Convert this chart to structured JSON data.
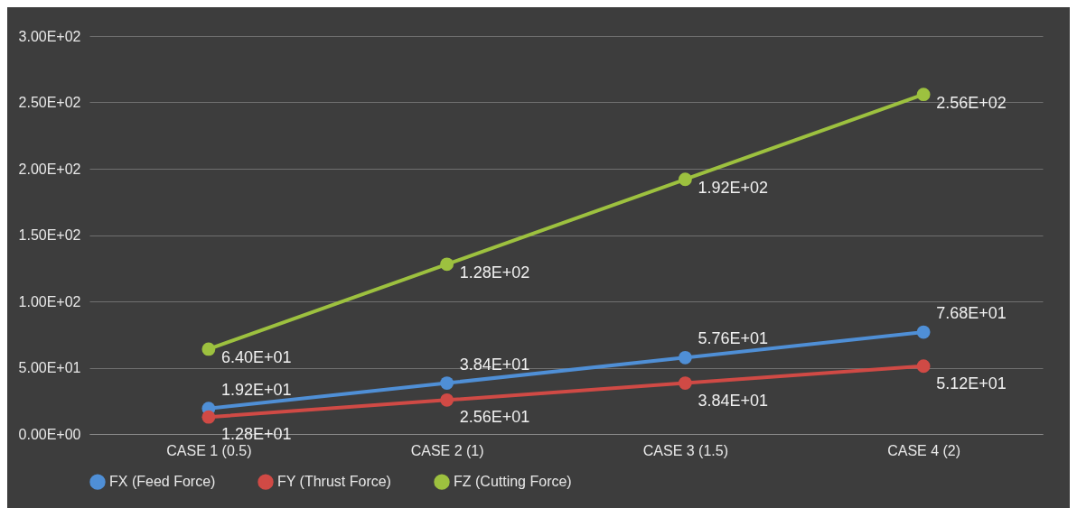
{
  "chart_data": {
    "type": "line",
    "categories": [
      "CASE 1 (0.5)",
      "CASE 2 (1)",
      "CASE 3 (1.5)",
      "CASE 4 (2)"
    ],
    "series": [
      {
        "name": "FX (Feed Force)",
        "color": "#4f8fd6",
        "values": [
          19.2,
          38.4,
          57.6,
          76.8
        ],
        "value_labels": [
          "1.92E+01",
          "3.84E+01",
          "5.76E+01",
          "7.68E+01"
        ]
      },
      {
        "name": "FY (Thrust Force)",
        "color": "#d04a45",
        "values": [
          12.8,
          25.6,
          38.4,
          51.2
        ],
        "value_labels": [
          "1.28E+01",
          "2.56E+01",
          "3.84E+01",
          "5.12E+01"
        ]
      },
      {
        "name": "FZ (Cutting Force)",
        "color": "#9dc13f",
        "values": [
          64,
          128,
          192,
          256
        ],
        "value_labels": [
          "6.40E+01",
          "1.28E+02",
          "1.92E+02",
          "2.56E+02"
        ]
      }
    ],
    "ylim": [
      0,
      300
    ],
    "yticks": [
      {
        "value": 0,
        "label": "0.00E+00"
      },
      {
        "value": 50,
        "label": "5.00E+01"
      },
      {
        "value": 100,
        "label": "1.00E+02"
      },
      {
        "value": 150,
        "label": "1.50E+02"
      },
      {
        "value": 200,
        "label": "2.00E+02"
      },
      {
        "value": 250,
        "label": "2.50E+02"
      },
      {
        "value": 300,
        "label": "3.00E+02"
      }
    ],
    "grid": "y",
    "legend": "bottom",
    "marker": "circle",
    "line_style": "solid"
  }
}
